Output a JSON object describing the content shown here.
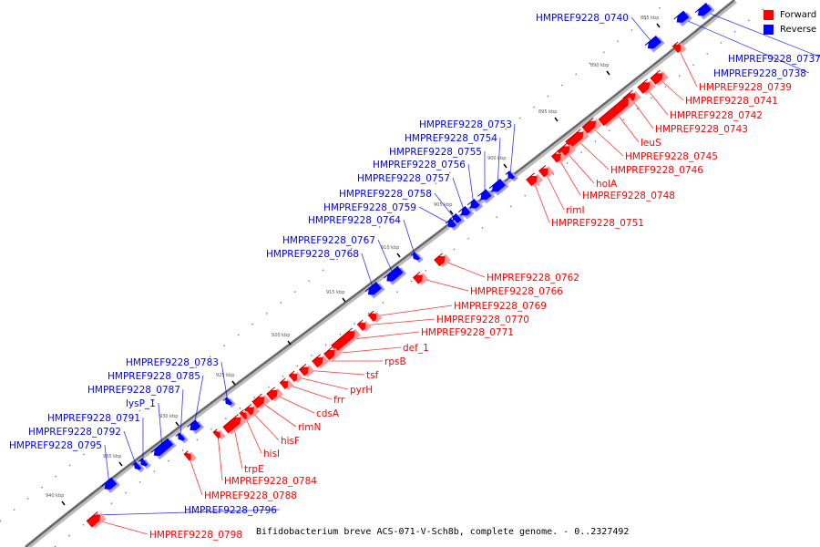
{
  "legend": {
    "forward": {
      "label": "Forward",
      "color": "#ff0000"
    },
    "reverse": {
      "label": "Reverse",
      "color": "#0000ff"
    }
  },
  "caption": "Bifidobacterium breve ACS-071-V-Sch8b, complete genome. - 0..2327492",
  "ticks": [
    "885 kbp",
    "890 kbp",
    "895 kbp",
    "900 kbp",
    "905 kbp",
    "910 kbp",
    "915 kbp",
    "920 kbp",
    "925 kbp",
    "930 kbp",
    "935 kbp",
    "940 kbp"
  ],
  "genes": [
    {
      "label": "HMPREF9228_0740",
      "strand": "reverse"
    },
    {
      "label": "HMPREF9228_0737",
      "strand": "reverse"
    },
    {
      "label": "HMPREF9228_0738",
      "strand": "reverse"
    },
    {
      "label": "HMPREF9228_0739",
      "strand": "forward"
    },
    {
      "label": "HMPREF9228_0741",
      "strand": "forward"
    },
    {
      "label": "HMPREF9228_0742",
      "strand": "forward"
    },
    {
      "label": "HMPREF9228_0743",
      "strand": "forward"
    },
    {
      "label": "leuS",
      "strand": "forward"
    },
    {
      "label": "HMPREF9228_0745",
      "strand": "forward"
    },
    {
      "label": "HMPREF9228_0746",
      "strand": "forward"
    },
    {
      "label": "holA",
      "strand": "forward"
    },
    {
      "label": "HMPREF9228_0748",
      "strand": "forward"
    },
    {
      "label": "rimI",
      "strand": "forward"
    },
    {
      "label": "HMPREF9228_0751",
      "strand": "forward"
    },
    {
      "label": "HMPREF9228_0753",
      "strand": "reverse"
    },
    {
      "label": "HMPREF9228_0754",
      "strand": "reverse"
    },
    {
      "label": "HMPREF9228_0755",
      "strand": "reverse"
    },
    {
      "label": "HMPREF9228_0756",
      "strand": "reverse"
    },
    {
      "label": "HMPREF9228_0757",
      "strand": "reverse"
    },
    {
      "label": "HMPREF9228_0758",
      "strand": "reverse"
    },
    {
      "label": "HMPREF9228_0759",
      "strand": "reverse"
    },
    {
      "label": "HMPREF9228_0764",
      "strand": "reverse"
    },
    {
      "label": "HMPREF9228_0767",
      "strand": "reverse"
    },
    {
      "label": "HMPREF9228_0768",
      "strand": "reverse"
    },
    {
      "label": "HMPREF9228_0762",
      "strand": "forward"
    },
    {
      "label": "HMPREF9228_0766",
      "strand": "forward"
    },
    {
      "label": "HMPREF9228_0769",
      "strand": "forward"
    },
    {
      "label": "HMPREF9228_0770",
      "strand": "forward"
    },
    {
      "label": "HMPREF9228_0771",
      "strand": "forward"
    },
    {
      "label": "def_1",
      "strand": "forward"
    },
    {
      "label": "rpsB",
      "strand": "forward"
    },
    {
      "label": "tsf",
      "strand": "forward"
    },
    {
      "label": "pyrH",
      "strand": "forward"
    },
    {
      "label": "frr",
      "strand": "forward"
    },
    {
      "label": "cdsA",
      "strand": "forward"
    },
    {
      "label": "rlmN",
      "strand": "forward"
    },
    {
      "label": "hisF",
      "strand": "forward"
    },
    {
      "label": "hisI",
      "strand": "forward"
    },
    {
      "label": "trpE",
      "strand": "forward"
    },
    {
      "label": "HMPREF9228_0784",
      "strand": "forward"
    },
    {
      "label": "HMPREF9228_0788",
      "strand": "forward"
    },
    {
      "label": "HMPREF9228_0783",
      "strand": "reverse"
    },
    {
      "label": "HMPREF9228_0785",
      "strand": "reverse"
    },
    {
      "label": "HMPREF9228_0787",
      "strand": "reverse"
    },
    {
      "label": "lysP_1",
      "strand": "reverse"
    },
    {
      "label": "HMPREF9228_0791",
      "strand": "reverse"
    },
    {
      "label": "HMPREF9228_0792",
      "strand": "reverse"
    },
    {
      "label": "HMPREF9228_0795",
      "strand": "reverse"
    },
    {
      "label": "HMPREF9228_0796",
      "strand": "reverse"
    },
    {
      "label": "HMPREF9228_0798",
      "strand": "forward"
    }
  ]
}
